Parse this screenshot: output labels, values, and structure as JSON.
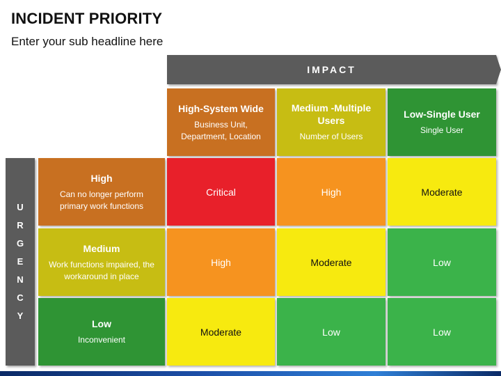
{
  "title": "INCIDENT PRIORITY",
  "subtitle": "Enter your sub headline here",
  "impact_label": "IMPACT",
  "urgency_letters": [
    "U",
    "R",
    "G",
    "E",
    "N",
    "C",
    "Y"
  ],
  "impact_columns": [
    {
      "title": "High-System Wide",
      "desc": "Business Unit, Department, Location",
      "color": "#c87021"
    },
    {
      "title": "Medium -Multiple Users",
      "desc": "Number of Users",
      "color": "#c7bd13"
    },
    {
      "title": "Low-Single User",
      "desc": "Single User",
      "color": "#2f9434"
    }
  ],
  "urgency_rows": [
    {
      "title": "High",
      "desc": "Can no longer perform primary work functions",
      "color": "#c87021"
    },
    {
      "title": "Medium",
      "desc": "Work functions impaired, the workaround in place",
      "color": "#c7bd13"
    },
    {
      "title": "Low",
      "desc": "Inconvenient",
      "color": "#2f9434"
    }
  ],
  "matrix": [
    [
      "Critical",
      "High",
      "Moderate"
    ],
    [
      "High",
      "Moderate",
      "Low"
    ],
    [
      "Moderate",
      "Low",
      "Low"
    ]
  ],
  "colors": {
    "critical": "#e8202a",
    "high": "#f6931f",
    "moderate": "#f7ea0f",
    "low": "#3bb34a",
    "header_bar": "#5b5b5b"
  }
}
